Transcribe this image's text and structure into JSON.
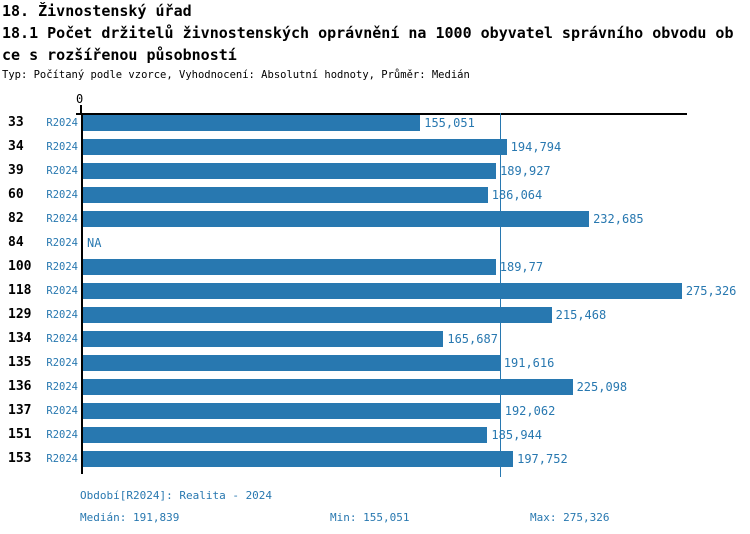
{
  "header": {
    "title": "18. Živnostenský úřad",
    "subtitle_line1": "18.1 Počet držitelů živnostenských oprávnění na 1000 obyvatel správního obvodu ob",
    "subtitle_line2": "ce s rozšířenou působností",
    "meta": "Typ: Počítaný podle vzorce, Vyhodnocení: Absolutní hodnoty, Průměr: Medián"
  },
  "chart_data": {
    "type": "bar",
    "orientation": "horizontal",
    "title": "18.1 Počet držitelů živnostenských oprávnění na 1000 obyvatel správního obvodu obce s rozšířenou působností",
    "axis_zero_label": "0",
    "xlim": [
      0,
      277.7
    ],
    "grid": false,
    "bar_color": "#2878b0",
    "median": 191.839,
    "median_display": "191,839",
    "rows": [
      {
        "code": "33",
        "period": "R2024",
        "value": 155.051,
        "display": "155,051"
      },
      {
        "code": "34",
        "period": "R2024",
        "value": 194.794,
        "display": "194,794"
      },
      {
        "code": "39",
        "period": "R2024",
        "value": 189.927,
        "display": "189,927"
      },
      {
        "code": "60",
        "period": "R2024",
        "value": 186.064,
        "display": "186,064"
      },
      {
        "code": "82",
        "period": "R2024",
        "value": 232.685,
        "display": "232,685"
      },
      {
        "code": "84",
        "period": "R2024",
        "value": null,
        "display": "NA"
      },
      {
        "code": "100",
        "period": "R2024",
        "value": 189.77,
        "display": "189,77"
      },
      {
        "code": "118",
        "period": "R2024",
        "value": 275.326,
        "display": "275,326"
      },
      {
        "code": "129",
        "period": "R2024",
        "value": 215.468,
        "display": "215,468"
      },
      {
        "code": "134",
        "period": "R2024",
        "value": 165.687,
        "display": "165,687"
      },
      {
        "code": "135",
        "period": "R2024",
        "value": 191.616,
        "display": "191,616"
      },
      {
        "code": "136",
        "period": "R2024",
        "value": 225.098,
        "display": "225,098"
      },
      {
        "code": "137",
        "period": "R2024",
        "value": 192.062,
        "display": "192,062"
      },
      {
        "code": "151",
        "period": "R2024",
        "value": 185.944,
        "display": "185,944"
      },
      {
        "code": "153",
        "period": "R2024",
        "value": 197.752,
        "display": "197,752"
      }
    ]
  },
  "footer": {
    "period_line": "Období[R2024]: Realita - 2024",
    "median_line": "Medián: 191,839",
    "min_line": "Min: 155,051",
    "max_line": "Max: 275,326"
  }
}
